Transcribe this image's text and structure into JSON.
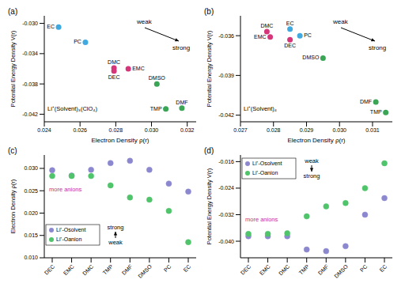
{
  "chart_data": [
    {
      "type": "scatter",
      "title": "(a)",
      "x_label": "Electron Density ρ(r)",
      "y_label": "Potential Energy Density V(r)",
      "xlim": [
        0.024,
        0.0325
      ],
      "xticks": [
        0.024,
        0.026,
        0.028,
        {
          "value": 0.03,
          "label": "0.030"
        },
        0.032
      ],
      "ylim": [
        -0.043,
        -0.029
      ],
      "yticks": [
        {
          "value": -0.03,
          "label": "-0.030"
        },
        -0.034,
        -0.038,
        -0.042
      ],
      "points": [
        {
          "label": "EC",
          "x": 0.0248,
          "y": -0.0305,
          "color": "#3fa9e0"
        },
        {
          "label": "PC",
          "x": 0.0263,
          "y": -0.0325,
          "color": "#3fa9e0"
        },
        {
          "label": "DMC",
          "x": 0.0279,
          "y": -0.0359,
          "color": "#d6357a"
        },
        {
          "label": "DEC",
          "x": 0.0279,
          "y": -0.0363,
          "color": "#d6357a"
        },
        {
          "label": "EMC",
          "x": 0.0287,
          "y": -0.036,
          "color": "#d6357a"
        },
        {
          "label": "DMSO",
          "x": 0.0303,
          "y": -0.038,
          "color": "#3aa655"
        },
        {
          "label": "TMP",
          "x": 0.0308,
          "y": -0.0413,
          "color": "#3aa655"
        },
        {
          "label": "DMF",
          "x": 0.0317,
          "y": -0.0412,
          "color": "#3aa655"
        }
      ],
      "annotations": [
        "weak",
        "strong",
        "Li⁺(Solvent)₃(ClO₄)"
      ]
    },
    {
      "type": "scatter",
      "title": "(b)",
      "x_label": "Electron Density ρ(r)",
      "y_label": "Potential Energy Density V(r)",
      "xlim": [
        0.027,
        0.0316
      ],
      "xticks": [
        0.027,
        0.028,
        0.029,
        {
          "value": 0.03,
          "label": "0.030"
        },
        0.031
      ],
      "ylim": [
        -0.0425,
        -0.0345
      ],
      "yticks": [
        -0.036,
        -0.039,
        -0.042
      ],
      "points": [
        {
          "label": "DMC",
          "x": 0.0278,
          "y": -0.0357,
          "color": "#d6357a"
        },
        {
          "label": "EMC",
          "x": 0.0279,
          "y": -0.0361,
          "color": "#d6357a"
        },
        {
          "label": "EC",
          "x": 0.0285,
          "y": -0.0355,
          "color": "#3fa9e0"
        },
        {
          "label": "PC",
          "x": 0.0288,
          "y": -0.036,
          "color": "#3fa9e0"
        },
        {
          "label": "DEC",
          "x": 0.0285,
          "y": -0.0363,
          "color": "#d6357a"
        },
        {
          "label": "DMSO",
          "x": 0.0295,
          "y": -0.0377,
          "color": "#3aa655"
        },
        {
          "label": "DMF",
          "x": 0.0311,
          "y": -0.041,
          "color": "#3aa655"
        },
        {
          "label": "TMP",
          "x": 0.0314,
          "y": -0.0418,
          "color": "#3aa655"
        }
      ],
      "annotations": [
        "weak",
        "strong",
        "Li⁺(Solvent)₄"
      ]
    },
    {
      "type": "scatter",
      "title": "(c)",
      "y_label": "Electron Density ρ(r)",
      "legend": "lower left",
      "categories": [
        "DEC",
        "EMC",
        "DMC",
        "TMP",
        "DMF",
        "DMSO",
        "PC",
        "EC"
      ],
      "ylim": [
        0.01,
        0.033
      ],
      "yticks": [
        {
          "value": 0.01,
          "label": "0.010"
        },
        0.015,
        {
          "value": 0.02,
          "label": "0.020"
        },
        0.025,
        {
          "value": 0.03,
          "label": "0.030"
        }
      ],
      "series": [
        {
          "name": "Li⁺-Osolvent",
          "color": "#8c88d0",
          "values": [
            0.0296,
            0.0284,
            0.0297,
            0.0312,
            0.0317,
            0.0297,
            0.0266,
            0.0248
          ]
        },
        {
          "name": "Li⁺-Oanion",
          "color": "#4fc46a",
          "values": [
            0.0283,
            0.0283,
            0.0283,
            0.0262,
            0.0235,
            0.023,
            0.0205,
            0.0135
          ]
        }
      ],
      "annotations": [
        "more anions",
        "strong",
        "weak"
      ]
    },
    {
      "type": "scatter",
      "title": "(d)",
      "y_label": "Potential Energy Density V(r)",
      "legend": "upper left",
      "categories": [
        "DEC",
        "EMC",
        "DMC",
        "TMP",
        "DMF",
        "DMSO",
        "PC",
        "EC"
      ],
      "ylim": [
        -0.045,
        -0.014
      ],
      "yticks": [
        -0.016,
        -0.024,
        -0.032,
        {
          "value": -0.04,
          "label": "-0.040"
        }
      ],
      "series": [
        {
          "name": "Li⁺-Osolvent",
          "color": "#8c88d0",
          "values": [
            -0.0385,
            -0.0385,
            -0.0385,
            -0.0425,
            -0.043,
            -0.0415,
            -0.032,
            -0.027
          ]
        },
        {
          "name": "Li⁺-Oanion",
          "color": "#4fc46a",
          "values": [
            -0.0378,
            -0.0378,
            -0.0376,
            -0.0325,
            -0.0295,
            -0.0285,
            -0.024,
            -0.0165
          ]
        }
      ],
      "annotations": [
        "more anions",
        "weak",
        "strong"
      ]
    }
  ]
}
